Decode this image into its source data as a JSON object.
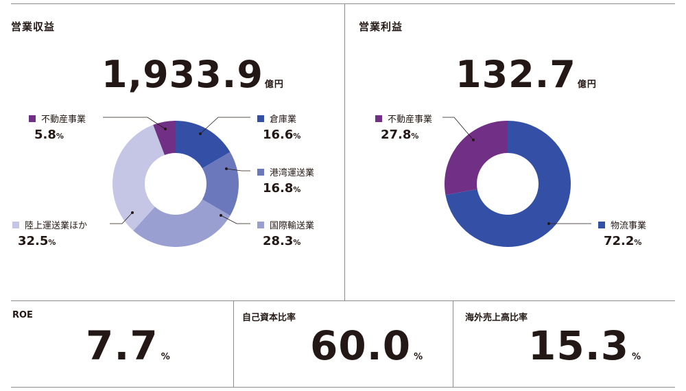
{
  "panels": {
    "revenue": {
      "title": "営業収益",
      "value": "1,933.9",
      "unit": "億円"
    },
    "profit": {
      "title": "営業利益",
      "value": "132.7",
      "unit": "億円"
    }
  },
  "kpis": [
    {
      "title": "ROE",
      "value": "7.7",
      "unit": "%"
    },
    {
      "title": "自己資本比率",
      "value": "60.0",
      "unit": "%"
    },
    {
      "title": "海外売上高比率",
      "value": "15.3",
      "unit": "%"
    }
  ],
  "pct_sign": "%",
  "chart_data": [
    {
      "type": "pie",
      "title": "営業収益",
      "categories": [
        "倉庫業",
        "港湾運送業",
        "国際輸送業",
        "陸上運送業ほか",
        "不動産事業"
      ],
      "values": [
        16.6,
        16.8,
        28.3,
        32.5,
        5.8
      ],
      "labels": [
        "16.6",
        "16.8",
        "28.3",
        "32.5",
        "5.8"
      ],
      "colors": [
        "#3450a6",
        "#6b78bc",
        "#9a9fd2",
        "#c5c6e5",
        "#722f86"
      ]
    },
    {
      "type": "pie",
      "title": "営業利益",
      "categories": [
        "物流事業",
        "不動産事業"
      ],
      "values": [
        72.2,
        27.8
      ],
      "labels": [
        "72.2",
        "27.8"
      ],
      "colors": [
        "#3450a6",
        "#722f86"
      ]
    }
  ]
}
